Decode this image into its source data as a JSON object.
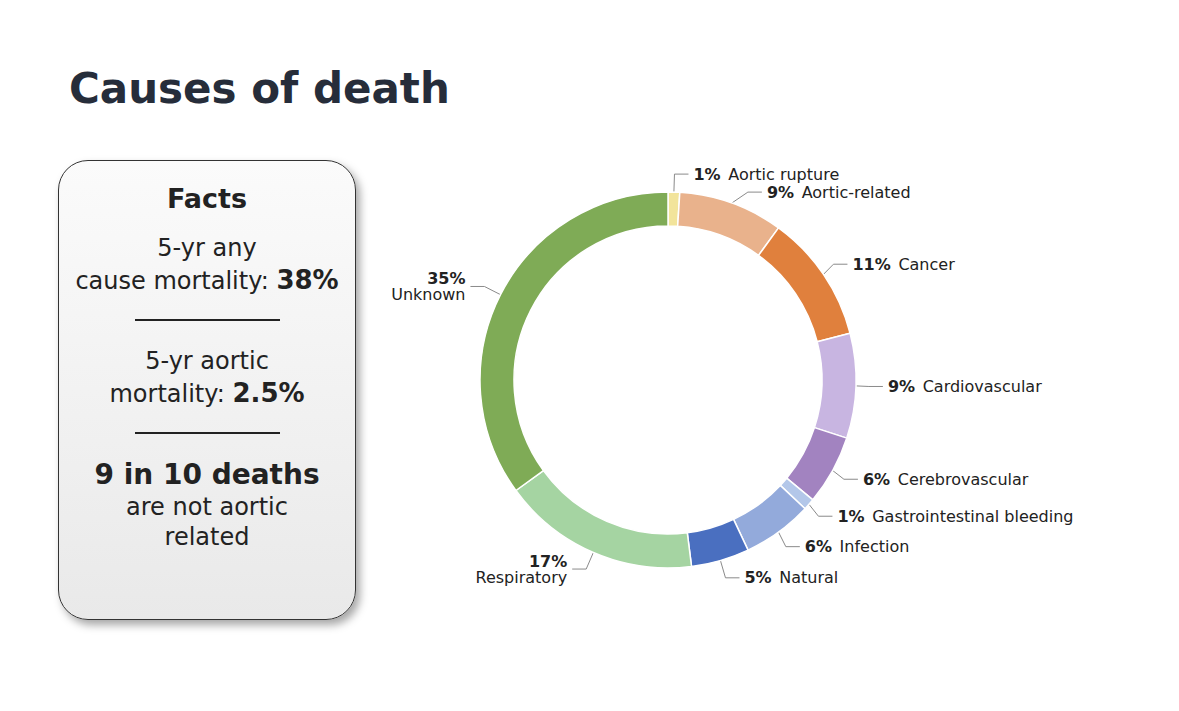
{
  "chart_data": {
    "type": "pie",
    "title": "Causes of death",
    "categories": [
      "Aortic rupture",
      "Aortic-related",
      "Cancer",
      "Cardiovascular",
      "Cerebrovascular",
      "Gastrointestinal bleeding",
      "Infection",
      "Natural",
      "Respiratory",
      "Unknown"
    ],
    "values": [
      1,
      9,
      11,
      9,
      6,
      1,
      6,
      5,
      17,
      35
    ],
    "value_labels": [
      "1%",
      "9%",
      "11%",
      "9%",
      "6%",
      "1%",
      "6%",
      "5%",
      "17%",
      "35%"
    ],
    "colors": [
      "#f2e49b",
      "#e9b28c",
      "#e0803d",
      "#c8b5e1",
      "#a283c0",
      "#b3c7e9",
      "#93aadb",
      "#4a6fc0",
      "#a5d4a2",
      "#7fab56"
    ],
    "data_labels": true
  },
  "facts": {
    "title": "Facts",
    "items": [
      {
        "label": "5-yr any cause mortality:",
        "value": "38%"
      },
      {
        "label": "5-yr aortic mortality:",
        "value": "2.5%"
      }
    ],
    "highlight": {
      "headline": "9 in 10 deaths",
      "text": "are not aortic related"
    }
  }
}
